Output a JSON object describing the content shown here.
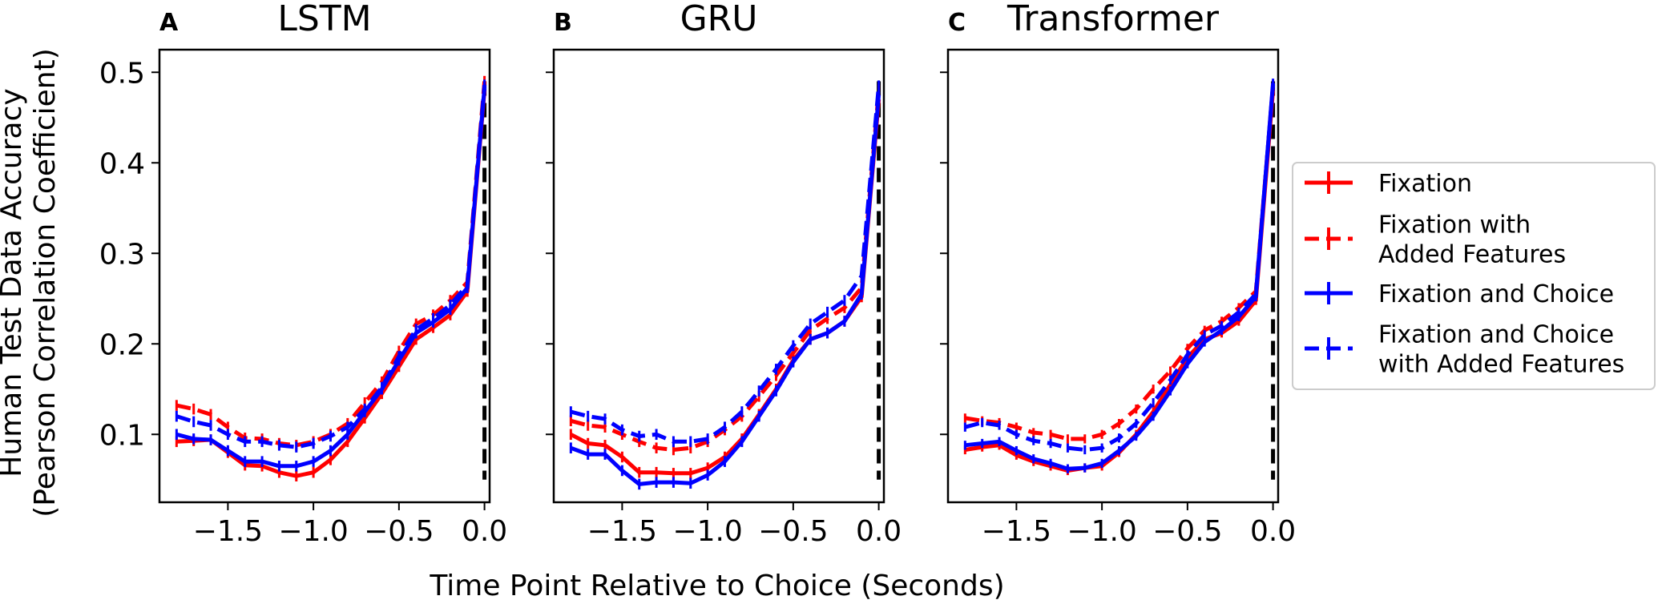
{
  "figure": {
    "xlabel": "Time Point Relative to Choice (Seconds)",
    "ylabel_line1": "Human Test Data Accuracy",
    "ylabel_line2": "(Pearson Correlation Coefficient)"
  },
  "legend": {
    "location": "right",
    "entries": [
      {
        "lines": [
          "Fixation"
        ],
        "color": "#ff0000",
        "dashed": false
      },
      {
        "lines": [
          "Fixation with",
          "Added Features"
        ],
        "color": "#ff0000",
        "dashed": true
      },
      {
        "lines": [
          "Fixation and Choice"
        ],
        "color": "#0000ff",
        "dashed": false
      },
      {
        "lines": [
          "Fixation and Choice",
          "with Added Features"
        ],
        "color": "#0000ff",
        "dashed": true
      }
    ]
  },
  "chart_data": [
    {
      "type": "line",
      "panel_letter": "A",
      "title": "LSTM",
      "x": [
        -1.8,
        -1.7,
        -1.6,
        -1.5,
        -1.4,
        -1.3,
        -1.2,
        -1.1,
        -1.0,
        -0.9,
        -0.8,
        -0.7,
        -0.6,
        -0.5,
        -0.4,
        -0.3,
        -0.2,
        -0.1,
        0.0
      ],
      "xlim": [
        -1.9,
        0.03
      ],
      "ylim": [
        0.025,
        0.5
      ],
      "xticks": [
        "−1.5",
        "−1.0",
        "−0.5",
        "0.0"
      ],
      "xtick_values": [
        -1.5,
        -1.0,
        -0.5,
        0.0
      ],
      "yticks": [
        "0.1",
        "0.2",
        "0.3",
        "0.4",
        "0.5"
      ],
      "ytick_values": [
        0.1,
        0.2,
        0.3,
        0.4,
        0.5
      ],
      "vline": {
        "x": 0.0,
        "y_from": 0.05,
        "y_to": 0.49,
        "color": "#000000",
        "dashed": true
      },
      "series": [
        {
          "legend_index": 0,
          "color": "#ff0000",
          "dashed": false,
          "error": 0.006,
          "values": [
            0.092,
            0.093,
            0.094,
            0.08,
            0.066,
            0.065,
            0.058,
            0.054,
            0.058,
            0.072,
            0.092,
            0.118,
            0.145,
            0.175,
            0.205,
            0.218,
            0.232,
            0.258,
            0.48
          ]
        },
        {
          "legend_index": 1,
          "color": "#ff0000",
          "dashed": true,
          "error": 0.006,
          "values": [
            0.132,
            0.128,
            0.122,
            0.108,
            0.096,
            0.095,
            0.09,
            0.088,
            0.092,
            0.1,
            0.112,
            0.135,
            0.158,
            0.192,
            0.222,
            0.232,
            0.248,
            0.268,
            0.49
          ]
        },
        {
          "legend_index": 2,
          "color": "#0000ff",
          "dashed": false,
          "error": 0.006,
          "values": [
            0.1,
            0.095,
            0.094,
            0.082,
            0.07,
            0.07,
            0.065,
            0.065,
            0.07,
            0.082,
            0.1,
            0.125,
            0.15,
            0.182,
            0.212,
            0.224,
            0.238,
            0.262,
            0.483
          ]
        },
        {
          "legend_index": 3,
          "color": "#0000ff",
          "dashed": true,
          "error": 0.006,
          "values": [
            0.12,
            0.114,
            0.11,
            0.1,
            0.092,
            0.092,
            0.088,
            0.086,
            0.09,
            0.098,
            0.108,
            0.128,
            0.152,
            0.186,
            0.216,
            0.228,
            0.243,
            0.265,
            0.486
          ]
        }
      ]
    },
    {
      "type": "line",
      "panel_letter": "B",
      "title": "GRU",
      "x": [
        -1.8,
        -1.7,
        -1.6,
        -1.5,
        -1.4,
        -1.3,
        -1.2,
        -1.1,
        -1.0,
        -0.9,
        -0.8,
        -0.7,
        -0.6,
        -0.5,
        -0.4,
        -0.3,
        -0.2,
        -0.1,
        0.0
      ],
      "xlim": [
        -1.9,
        0.03
      ],
      "ylim": [
        0.025,
        0.5
      ],
      "xticks": [
        "−1.5",
        "−1.0",
        "−0.5",
        "0.0"
      ],
      "xtick_values": [
        -1.5,
        -1.0,
        -0.5,
        0.0
      ],
      "yticks": [
        "0.1",
        "0.2",
        "0.3",
        "0.4",
        "0.5"
      ],
      "ytick_values": [
        0.1,
        0.2,
        0.3,
        0.4,
        0.5
      ],
      "vline": {
        "x": 0.0,
        "y_from": 0.05,
        "y_to": 0.49,
        "color": "#000000",
        "dashed": true
      },
      "series": [
        {
          "legend_index": 0,
          "color": "#ff0000",
          "dashed": false,
          "error": 0.006,
          "values": [
            0.1,
            0.09,
            0.088,
            0.075,
            0.058,
            0.058,
            0.057,
            0.057,
            0.063,
            0.075,
            0.095,
            0.122,
            0.15,
            0.182,
            0.205,
            0.212,
            0.225,
            0.252,
            0.47
          ]
        },
        {
          "legend_index": 1,
          "color": "#ff0000",
          "dashed": true,
          "error": 0.006,
          "values": [
            0.115,
            0.11,
            0.108,
            0.1,
            0.092,
            0.085,
            0.083,
            0.085,
            0.092,
            0.105,
            0.12,
            0.142,
            0.165,
            0.19,
            0.215,
            0.228,
            0.24,
            0.262,
            0.48
          ]
        },
        {
          "legend_index": 2,
          "color": "#0000ff",
          "dashed": false,
          "error": 0.006,
          "values": [
            0.085,
            0.078,
            0.078,
            0.06,
            0.045,
            0.047,
            0.047,
            0.046,
            0.055,
            0.07,
            0.092,
            0.12,
            0.148,
            0.18,
            0.205,
            0.212,
            0.225,
            0.255,
            0.475
          ]
        },
        {
          "legend_index": 3,
          "color": "#0000ff",
          "dashed": true,
          "error": 0.006,
          "values": [
            0.125,
            0.12,
            0.117,
            0.105,
            0.098,
            0.1,
            0.092,
            0.092,
            0.095,
            0.108,
            0.125,
            0.148,
            0.172,
            0.198,
            0.222,
            0.235,
            0.248,
            0.275,
            0.485
          ]
        }
      ]
    },
    {
      "type": "line",
      "panel_letter": "C",
      "title": "Transformer",
      "x": [
        -1.8,
        -1.7,
        -1.6,
        -1.5,
        -1.4,
        -1.3,
        -1.2,
        -1.1,
        -1.0,
        -0.9,
        -0.8,
        -0.7,
        -0.6,
        -0.5,
        -0.4,
        -0.3,
        -0.2,
        -0.1,
        0.0
      ],
      "xlim": [
        -1.9,
        0.03
      ],
      "ylim": [
        0.025,
        0.5
      ],
      "xticks": [
        "−1.5",
        "−1.0",
        "−0.5",
        "0.0"
      ],
      "xtick_values": [
        -1.5,
        -1.0,
        -0.5,
        0.0
      ],
      "yticks": [
        "0.1",
        "0.2",
        "0.3",
        "0.4",
        "0.5"
      ],
      "ytick_values": [
        0.1,
        0.2,
        0.3,
        0.4,
        0.5
      ],
      "vline": {
        "x": 0.0,
        "y_from": 0.05,
        "y_to": 0.49,
        "color": "#000000",
        "dashed": true
      },
      "series": [
        {
          "legend_index": 0,
          "color": "#ff0000",
          "dashed": false,
          "error": 0.005,
          "values": [
            0.083,
            0.086,
            0.088,
            0.077,
            0.07,
            0.065,
            0.06,
            0.063,
            0.065,
            0.08,
            0.1,
            0.125,
            0.155,
            0.185,
            0.205,
            0.212,
            0.225,
            0.248,
            0.48
          ]
        },
        {
          "legend_index": 1,
          "color": "#ff0000",
          "dashed": true,
          "error": 0.005,
          "values": [
            0.118,
            0.115,
            0.113,
            0.108,
            0.102,
            0.1,
            0.095,
            0.095,
            0.1,
            0.112,
            0.128,
            0.15,
            0.17,
            0.195,
            0.215,
            0.225,
            0.24,
            0.258,
            0.485
          ]
        },
        {
          "legend_index": 2,
          "color": "#0000ff",
          "dashed": false,
          "error": 0.005,
          "values": [
            0.088,
            0.09,
            0.092,
            0.082,
            0.073,
            0.068,
            0.062,
            0.063,
            0.068,
            0.082,
            0.098,
            0.12,
            0.148,
            0.178,
            0.202,
            0.215,
            0.23,
            0.252,
            0.488
          ]
        },
        {
          "legend_index": 3,
          "color": "#0000ff",
          "dashed": true,
          "error": 0.005,
          "values": [
            0.108,
            0.113,
            0.11,
            0.1,
            0.093,
            0.09,
            0.085,
            0.083,
            0.085,
            0.096,
            0.112,
            0.135,
            0.16,
            0.188,
            0.21,
            0.22,
            0.235,
            0.255,
            0.486
          ]
        }
      ]
    }
  ]
}
